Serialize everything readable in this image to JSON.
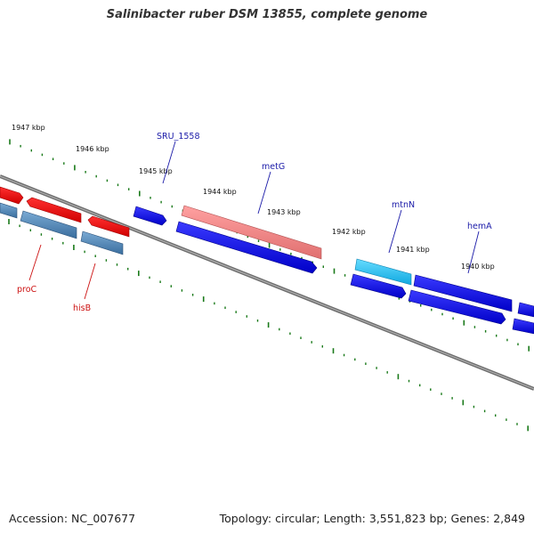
{
  "title": "Salinibacter ruber DSM 13855, complete genome",
  "footer": {
    "accession": "Accession: NC_007677",
    "summary": "Topology: circular; Length: 3,551,823 bp; Genes: 2,849"
  },
  "colors": {
    "backbone": "#7a7a7a",
    "tick": "#1a7a1a",
    "label_pos_strand": "#1a1aa8",
    "label_neg_strand": "#cc1111",
    "gene_blue": "#0000e6",
    "gene_red": "#ee0000",
    "gene_pink": "#f08080",
    "gene_cyan": "#22c0ee",
    "gene_steel": "#4f88b8"
  },
  "scale_labels": [
    "1947 kbp",
    "1946 kbp",
    "1945 kbp",
    "1944 kbp",
    "1943 kbp",
    "1942 kbp",
    "1941 kbp",
    "1940 kbp"
  ],
  "gene_labels": {
    "SRU_1558": "SRU_1558",
    "metG": "metG",
    "mtnN": "mtnN",
    "hemA": "hemA",
    "proC": "proC",
    "hisB": "hisB"
  }
}
